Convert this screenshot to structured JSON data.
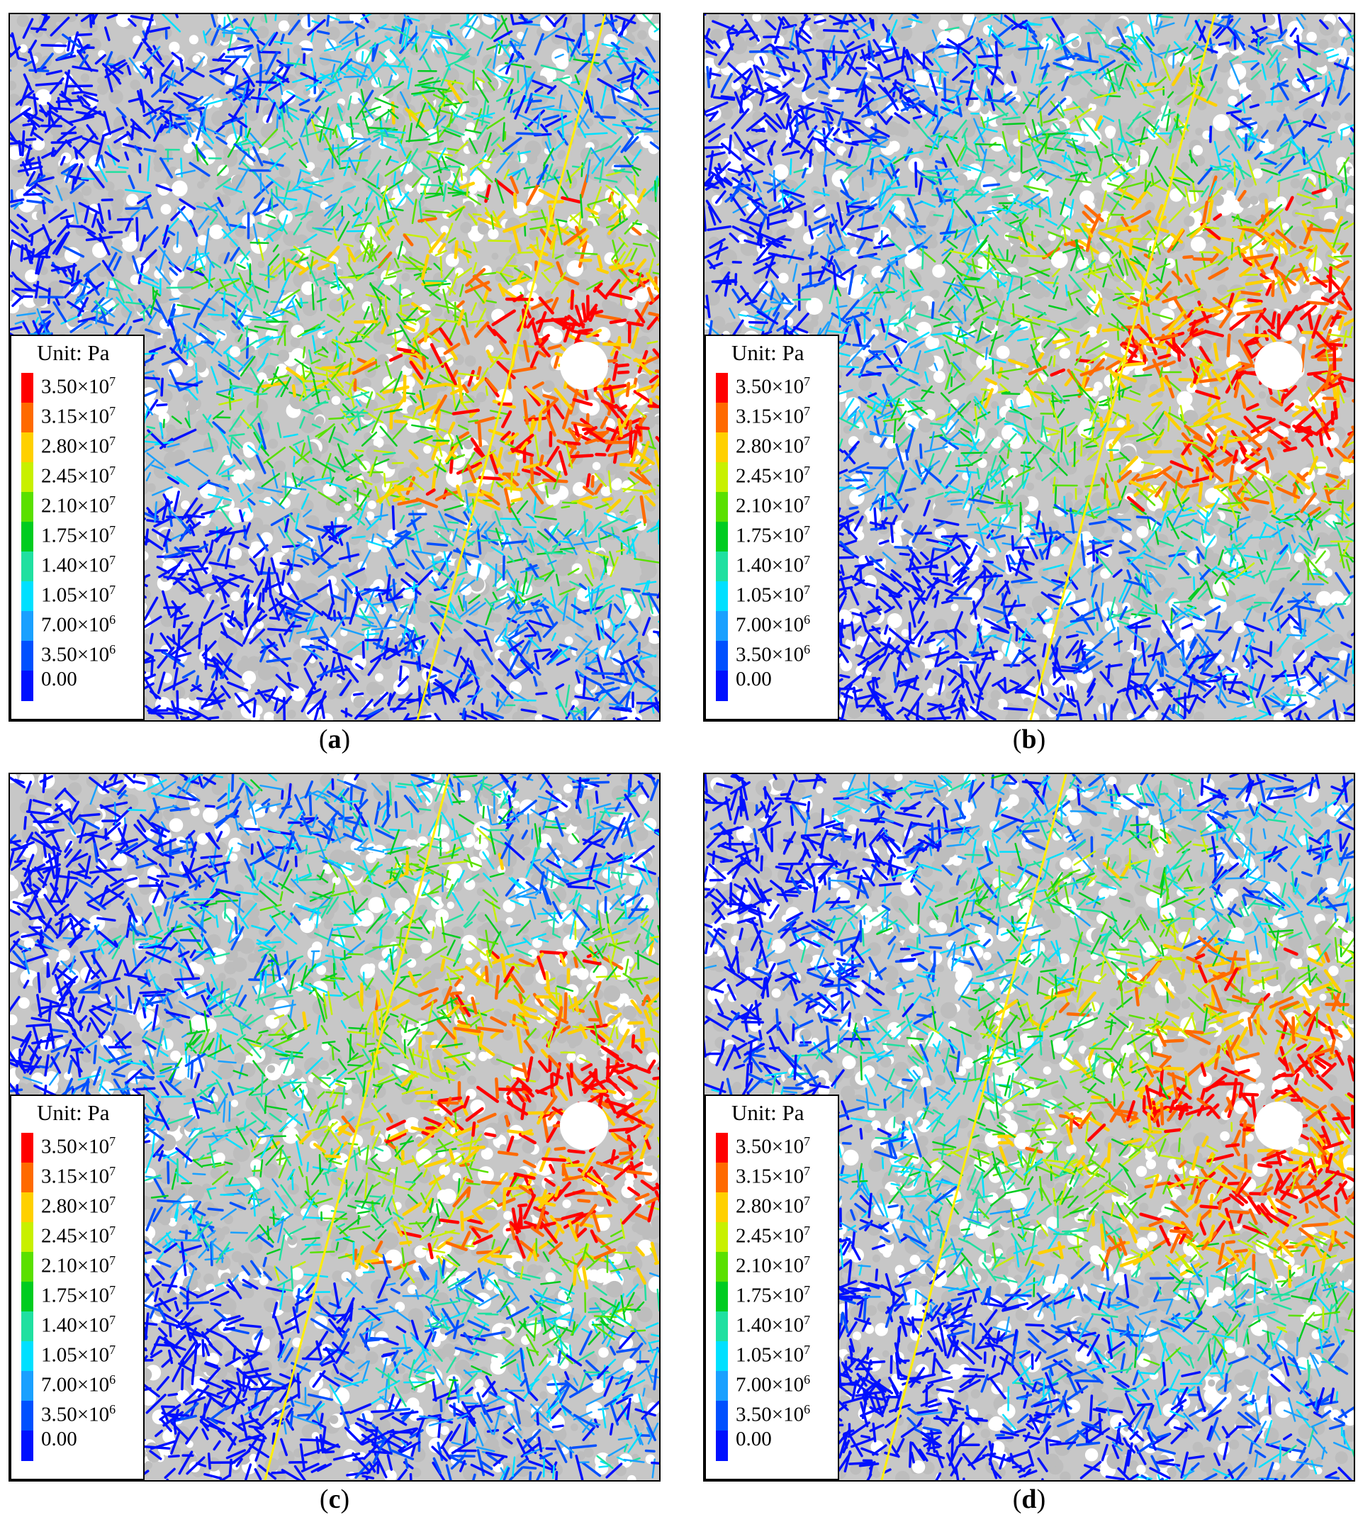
{
  "panels": [
    {
      "id": "a",
      "label_open": "(",
      "label_letter": "a",
      "label_close": ")"
    },
    {
      "id": "b",
      "label_open": "(",
      "label_letter": "b",
      "label_close": ")"
    },
    {
      "id": "c",
      "label_open": "(",
      "label_letter": "c",
      "label_close": ")"
    },
    {
      "id": "d",
      "label_open": "(",
      "label_letter": "d",
      "label_close": ")"
    }
  ],
  "legend": {
    "unit": "Unit: Pa",
    "ticks": [
      {
        "mant": "3.50×10",
        "exp": "7"
      },
      {
        "mant": "3.15×10",
        "exp": "7"
      },
      {
        "mant": "2.80×10",
        "exp": "7"
      },
      {
        "mant": "2.45×10",
        "exp": "7"
      },
      {
        "mant": "2.10×10",
        "exp": "7"
      },
      {
        "mant": "1.75×10",
        "exp": "7"
      },
      {
        "mant": "1.40×10",
        "exp": "7"
      },
      {
        "mant": "1.05×10",
        "exp": "7"
      },
      {
        "mant": "7.00×10",
        "exp": "6"
      },
      {
        "mant": "3.50×10",
        "exp": "6"
      },
      {
        "mant": "0.00",
        "exp": ""
      }
    ],
    "colors": [
      "#ff0000",
      "#ff6a00",
      "#ffd000",
      "#c8f000",
      "#5ae000",
      "#00cc20",
      "#20e0a0",
      "#00e0ff",
      "#1aa0ff",
      "#0050ff",
      "#0010ff"
    ]
  },
  "colors": {
    "background_grain": "#c7c7c7",
    "fault_line": "#ffee00",
    "frame": "#000000"
  }
}
